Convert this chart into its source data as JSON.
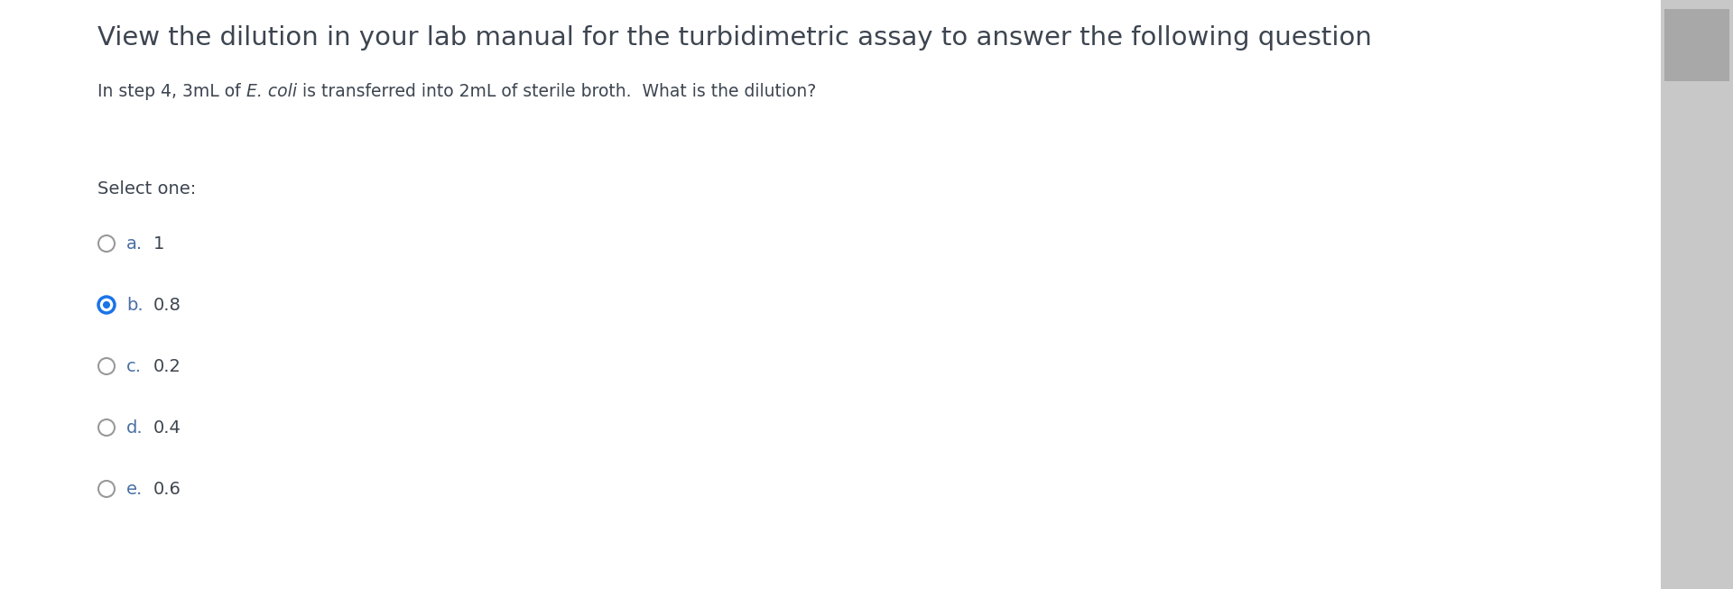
{
  "title": "View the dilution in your lab manual for the turbidimetric assay to answer the following question",
  "question_part1": "In step 4, 3mL of ",
  "question_italic": "E. coli",
  "question_part2": " is transferred into 2mL of sterile broth.  What is the dilution?",
  "select_label": "Select one:",
  "options": [
    {
      "letter": "a.",
      "value": "1",
      "selected": false
    },
    {
      "letter": "b.",
      "value": "0.8",
      "selected": true
    },
    {
      "letter": "c.",
      "value": "0.2",
      "selected": false
    },
    {
      "letter": "d.",
      "value": "0.4",
      "selected": false
    },
    {
      "letter": "e.",
      "value": "0.6",
      "selected": false
    }
  ],
  "background_color": "#ffffff",
  "title_color": "#3d4550",
  "question_color": "#3d4550",
  "select_color": "#3d4550",
  "option_letter_color": "#4a6fa5",
  "option_value_color": "#3d4550",
  "radio_unselected_edge": "#999999",
  "radio_selected_color": "#1a73e8",
  "title_fontsize": 21,
  "question_fontsize": 13.5,
  "select_fontsize": 14,
  "option_fontsize": 14,
  "right_panel_color": "#c8c8c8",
  "scrollbar_handle_color": "#a8a8a8"
}
